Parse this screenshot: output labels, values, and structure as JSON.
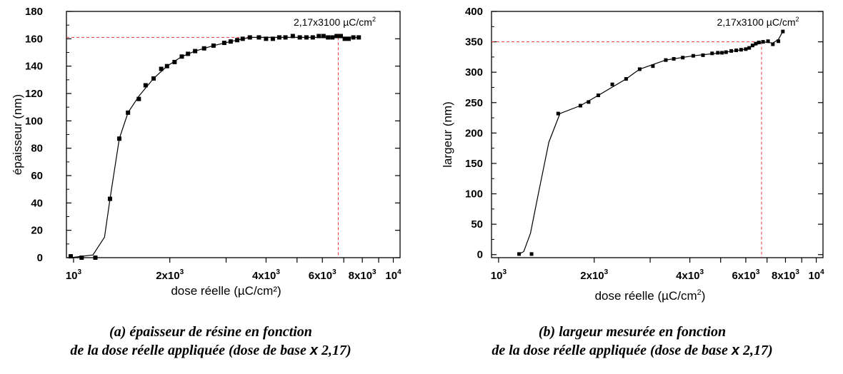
{
  "chart_data": [
    {
      "type": "scatter",
      "x_scale": "log",
      "xlim": [
        950,
        10500
      ],
      "ylim": [
        0,
        180
      ],
      "ylabel": "épaisseur (nm)",
      "xlabel": "dose réelle (µC/cm²)",
      "x_tick_labels": [
        {
          "value": 1000,
          "base": "10",
          "exp": "3"
        },
        {
          "value": 2000,
          "base": "2x10",
          "exp": "3"
        },
        {
          "value": 4000,
          "base": "4x10",
          "exp": "3"
        },
        {
          "value": 6000,
          "base": "6x10",
          "exp": "3"
        },
        {
          "value": 8000,
          "base": "8x10",
          "exp": "3"
        },
        {
          "value": 10000,
          "base": "10",
          "exp": "4"
        }
      ],
      "y_ticks": [
        0,
        20,
        40,
        60,
        80,
        100,
        120,
        140,
        160,
        180
      ],
      "annotation": {
        "text": "2,17x3100 µC/cm",
        "sup": "2",
        "x": 6727,
        "y": 161
      },
      "series": [
        {
          "marker": "square",
          "points": [
            [
              980,
              1
            ],
            [
              1060,
              0
            ],
            [
              1170,
              0
            ],
            [
              1300,
              43
            ],
            [
              1390,
              87
            ],
            [
              1480,
              106
            ],
            [
              1600,
              116
            ],
            [
              1680,
              126
            ],
            [
              1780,
              131
            ],
            [
              1880,
              138
            ],
            [
              1960,
              140
            ],
            [
              2070,
              143
            ],
            [
              2180,
              147
            ],
            [
              2280,
              149
            ],
            [
              2400,
              151
            ],
            [
              2560,
              153
            ],
            [
              2740,
              155
            ],
            [
              2960,
              157
            ],
            [
              3100,
              158
            ],
            [
              3250,
              159
            ],
            [
              3380,
              160
            ],
            [
              3560,
              161
            ],
            [
              3800,
              161
            ],
            [
              4000,
              160
            ],
            [
              4200,
              160
            ],
            [
              4400,
              161
            ],
            [
              4600,
              161
            ],
            [
              4850,
              162
            ],
            [
              5100,
              161
            ],
            [
              5350,
              161
            ],
            [
              5600,
              161
            ],
            [
              5850,
              162
            ],
            [
              6050,
              162
            ],
            [
              6250,
              161
            ],
            [
              6450,
              161
            ],
            [
              6650,
              162
            ],
            [
              6850,
              162
            ],
            [
              7050,
              160
            ],
            [
              7250,
              160
            ],
            [
              7500,
              161
            ],
            [
              7800,
              161
            ]
          ],
          "curve": [
            [
              980,
              0
            ],
            [
              1150,
              2
            ],
            [
              1250,
              15
            ],
            [
              1300,
              43
            ],
            [
              1390,
              87
            ],
            [
              1480,
              106
            ],
            [
              1600,
              118
            ],
            [
              1780,
              131
            ],
            [
              1960,
              140
            ],
            [
              2180,
              147
            ],
            [
              2400,
              151
            ],
            [
              2740,
              155
            ],
            [
              3100,
              158
            ],
            [
              3560,
              161
            ],
            [
              4000,
              161
            ],
            [
              5000,
              161
            ],
            [
              6000,
              161
            ],
            [
              7000,
              161
            ],
            [
              7800,
              161
            ]
          ]
        }
      ],
      "guide_color": "#e53935"
    },
    {
      "type": "scatter",
      "x_scale": "log",
      "xlim": [
        950,
        10500
      ],
      "ylim": [
        -5,
        400
      ],
      "ylabel": "largeur (nm)",
      "xlabel": "dose réelle (µC/cm",
      "xlabel_sup": "2",
      "xlabel_tail": ")",
      "x_tick_labels": [
        {
          "value": 1000,
          "base": "10",
          "exp": "3"
        },
        {
          "value": 2000,
          "base": "2x10",
          "exp": "3"
        },
        {
          "value": 4000,
          "base": "4x10",
          "exp": "3"
        },
        {
          "value": 6000,
          "base": "6x10",
          "exp": "3"
        },
        {
          "value": 8000,
          "base": "8x10",
          "exp": "3"
        },
        {
          "value": 10000,
          "base": "10",
          "exp": "4"
        }
      ],
      "y_ticks": [
        0,
        50,
        100,
        150,
        200,
        250,
        300,
        350,
        400
      ],
      "annotation": {
        "text": "2,17x3100 µC/cm",
        "sup": "2",
        "x": 6727,
        "y": 350
      },
      "series": [
        {
          "marker": "square",
          "points": [
            [
              1160,
              1
            ],
            [
              1270,
              1
            ],
            [
              1540,
              232
            ],
            [
              1810,
              245
            ],
            [
              1920,
              251
            ],
            [
              2060,
              262
            ],
            [
              2280,
              280
            ],
            [
              2520,
              289
            ],
            [
              2780,
              305
            ],
            [
              3060,
              310
            ],
            [
              3360,
              320
            ],
            [
              3560,
              322
            ],
            [
              3800,
              324
            ],
            [
              4100,
              327
            ],
            [
              4400,
              328
            ],
            [
              4700,
              331
            ],
            [
              4900,
              332
            ],
            [
              5050,
              332
            ],
            [
              5200,
              333
            ],
            [
              5400,
              335
            ],
            [
              5600,
              336
            ],
            [
              5800,
              337
            ],
            [
              6000,
              338
            ],
            [
              6150,
              340
            ],
            [
              6300,
              344
            ],
            [
              6450,
              347
            ],
            [
              6600,
              349
            ],
            [
              6800,
              350
            ],
            [
              7050,
              351
            ],
            [
              7300,
              346
            ],
            [
              7600,
              351
            ],
            [
              7850,
              367
            ]
          ],
          "curve": [
            [
              1160,
              1
            ],
            [
              1200,
              5
            ],
            [
              1260,
              35
            ],
            [
              1340,
              105
            ],
            [
              1440,
              185
            ],
            [
              1560,
              232
            ],
            [
              1810,
              245
            ],
            [
              2060,
              262
            ],
            [
              2520,
              289
            ],
            [
              2780,
              305
            ],
            [
              3360,
              320
            ],
            [
              4100,
              327
            ],
            [
              5050,
              332
            ],
            [
              6000,
              338
            ],
            [
              6800,
              350
            ],
            [
              7300,
              348
            ],
            [
              7600,
              354
            ],
            [
              7850,
              367
            ]
          ]
        }
      ],
      "guide_color": "#e53935"
    }
  ],
  "captions": {
    "a_line1": "(a) épaisseur de résine en fonction",
    "a_line2": "de la dose réelle appliquée (dose de base ",
    "a_x": "x",
    "a_tail": " 2,17)",
    "b_line1": "(b) largeur mesurée en fonction",
    "b_line2": "de la dose réelle appliquée (dose de base ",
    "b_x": "x",
    "b_tail": " 2,17)"
  }
}
